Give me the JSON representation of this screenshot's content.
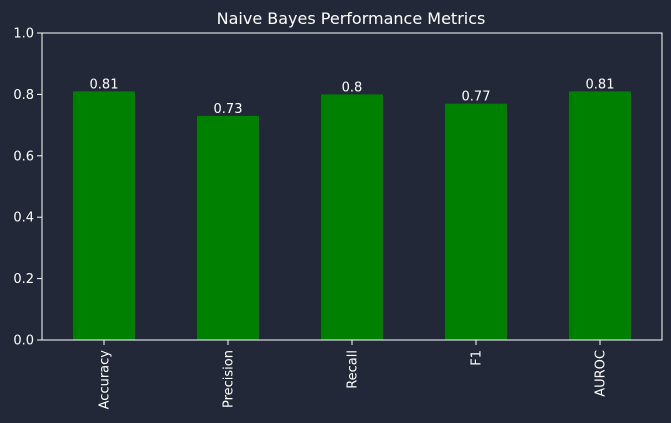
{
  "chart_data": {
    "type": "bar",
    "title": "Naive Bayes Performance Metrics",
    "xlabel": "",
    "ylabel": "",
    "categories": [
      "Accuracy",
      "Precision",
      "Recall",
      "F1",
      "AUROC"
    ],
    "values": [
      0.81,
      0.73,
      0.8,
      0.77,
      0.81
    ],
    "data_labels": [
      "0.81",
      "0.73",
      "0.8",
      "0.77",
      "0.81"
    ],
    "ylim": [
      0,
      1.0
    ],
    "yticks": [
      0.0,
      0.2,
      0.4,
      0.6,
      0.8,
      1.0
    ],
    "ytick_labels": [
      "0.0",
      "0.2",
      "0.4",
      "0.6",
      "0.8",
      "1.0"
    ],
    "grid": false,
    "legend": "none",
    "x_tick_rotation": "vertical"
  },
  "colors": {
    "background": "#222837",
    "bar": "#008000",
    "axis": "#ffffff",
    "text": "#ffffff"
  }
}
